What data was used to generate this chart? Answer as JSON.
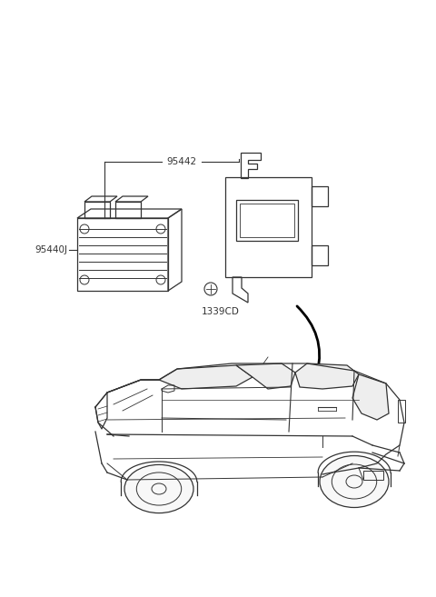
{
  "background_color": "#ffffff",
  "fig_width": 4.8,
  "fig_height": 6.57,
  "dpi": 100,
  "line_color": "#333333",
  "line_color_dark": "#111111",
  "label_95442": "95442",
  "label_95440J": "95440J",
  "label_1339CD": "1339CD",
  "label_fontsize": 7.5
}
